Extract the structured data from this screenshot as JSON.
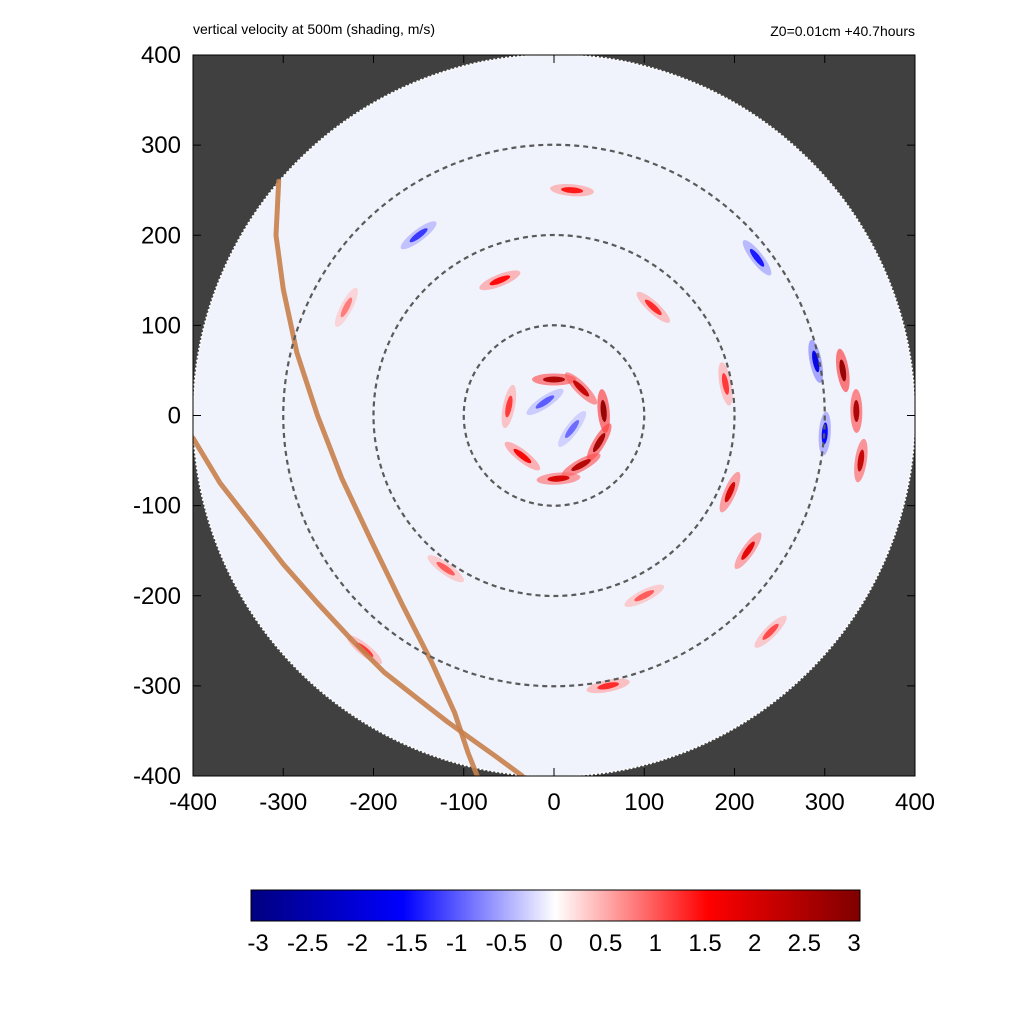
{
  "chart_data": {
    "type": "heatmap",
    "title": "vertical velocity at 500m (shading, m/s)",
    "subtitle": "Z0=0.01cm  +40.7hours",
    "xlim": [
      -400,
      400
    ],
    "ylim": [
      -400,
      400
    ],
    "xticks": [
      "-400",
      "-300",
      "-200",
      "-100",
      "0",
      "100",
      "200",
      "300",
      "400"
    ],
    "yticks": [
      "400",
      "300",
      "200",
      "100",
      "0",
      "-100",
      "-200",
      "-300",
      "-400"
    ],
    "domain_radius": 400,
    "reference_circle_radii": [
      100,
      200,
      300
    ],
    "colorbar": {
      "range": [
        -3,
        3
      ],
      "ticks": [
        "-3",
        "-2.5",
        "-2",
        "-1.5",
        "-1",
        "-0.5",
        "0",
        "0.5",
        "1",
        "1.5",
        "2",
        "2.5",
        "3"
      ],
      "colors": [
        "#00007f",
        "#0000ff",
        "#ffffff",
        "#ff0000",
        "#7f0000"
      ]
    },
    "outside_domain_color": "#404040",
    "track_color": "#c8804a",
    "tracks": [
      {
        "x": [
          -305,
          -308,
          -300,
          -285,
          -262,
          -235,
          -202,
          -168,
          -135,
          -110,
          -95,
          -85
        ],
        "y": [
          260,
          200,
          140,
          70,
          0,
          -70,
          -140,
          -210,
          -275,
          -330,
          -375,
          -400
        ]
      },
      {
        "x": [
          -400,
          -370,
          -335,
          -300,
          -262,
          -225,
          -188,
          -150,
          -118,
          -90,
          -62,
          -35
        ],
        "y": [
          -25,
          -75,
          -120,
          -165,
          -208,
          -248,
          -285,
          -315,
          -340,
          -360,
          -380,
          -400
        ]
      }
    ],
    "features": [
      {
        "x": 0,
        "y": 40,
        "value": 2.5
      },
      {
        "x": 30,
        "y": 30,
        "value": 2.2
      },
      {
        "x": 55,
        "y": 5,
        "value": 2.8
      },
      {
        "x": 50,
        "y": -30,
        "value": 2.6
      },
      {
        "x": 30,
        "y": -55,
        "value": 2.4
      },
      {
        "x": 5,
        "y": -70,
        "value": 2.0
      },
      {
        "x": -35,
        "y": -45,
        "value": 1.6
      },
      {
        "x": -50,
        "y": 10,
        "value": 1.2
      },
      {
        "x": -10,
        "y": 15,
        "value": -1.0
      },
      {
        "x": 20,
        "y": -15,
        "value": -0.9
      },
      {
        "x": 195,
        "y": -85,
        "value": 2.0
      },
      {
        "x": 215,
        "y": -150,
        "value": 1.8
      },
      {
        "x": 190,
        "y": 35,
        "value": 1.2
      },
      {
        "x": 110,
        "y": 120,
        "value": 1.3
      },
      {
        "x": -60,
        "y": 150,
        "value": 1.5
      },
      {
        "x": 100,
        "y": -200,
        "value": 1.0
      },
      {
        "x": 320,
        "y": 50,
        "value": 2.8
      },
      {
        "x": 335,
        "y": 5,
        "value": 2.5
      },
      {
        "x": 340,
        "y": -50,
        "value": 2.2
      },
      {
        "x": 290,
        "y": 60,
        "value": -1.8
      },
      {
        "x": 300,
        "y": -20,
        "value": -1.5
      },
      {
        "x": 225,
        "y": 175,
        "value": -1.4
      },
      {
        "x": -150,
        "y": 200,
        "value": -1.2
      },
      {
        "x": 20,
        "y": 250,
        "value": 1.4
      },
      {
        "x": -120,
        "y": -170,
        "value": 1.0
      },
      {
        "x": 60,
        "y": -300,
        "value": 1.3
      },
      {
        "x": 240,
        "y": -240,
        "value": 1.1
      },
      {
        "x": -210,
        "y": -260,
        "value": 1.2
      },
      {
        "x": -230,
        "y": 120,
        "value": 0.8
      }
    ]
  }
}
